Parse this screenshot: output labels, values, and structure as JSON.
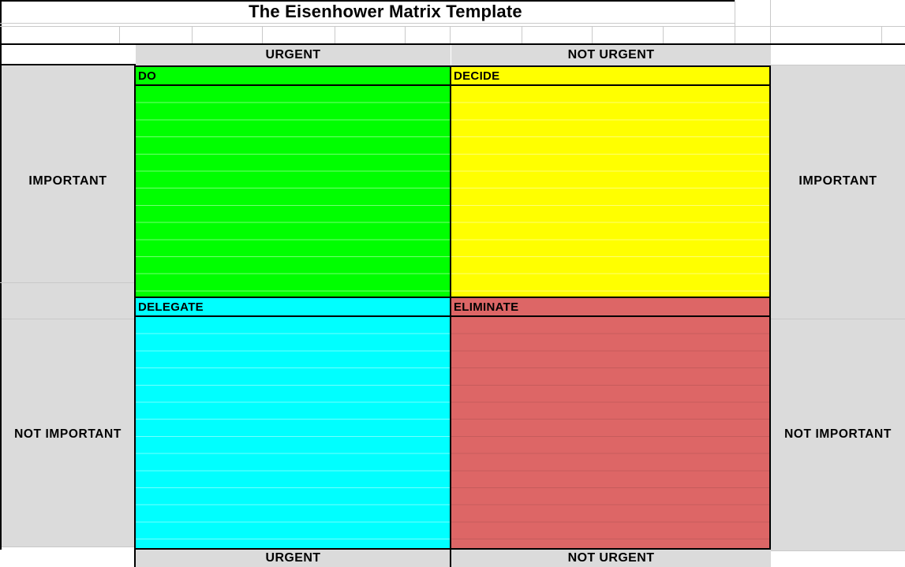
{
  "sheet": {
    "title": "The Eisenhower Matrix Template"
  },
  "top_header": {
    "urgent": "URGENT",
    "not_urgent": "NOT URGENT"
  },
  "bottom_header": {
    "urgent": "URGENT",
    "not_urgent": "NOT URGENT"
  },
  "side_labels": {
    "important": "IMPORTANT",
    "not_important": "NOT IMPORTANT"
  },
  "quadrants": {
    "do": {
      "label": "DO",
      "color": "#00ff00"
    },
    "decide": {
      "label": "DECIDE",
      "color": "#ffff00"
    },
    "delegate": {
      "label": "DELEGATE",
      "color": "#00ffff"
    },
    "eliminate": {
      "label": "ELIMINATE",
      "color": "#dd6666"
    }
  },
  "colors": {
    "label_cell_gray": "#dbdbdb",
    "border_black": "#000000",
    "gridline_gray": "#c9c9c9"
  }
}
